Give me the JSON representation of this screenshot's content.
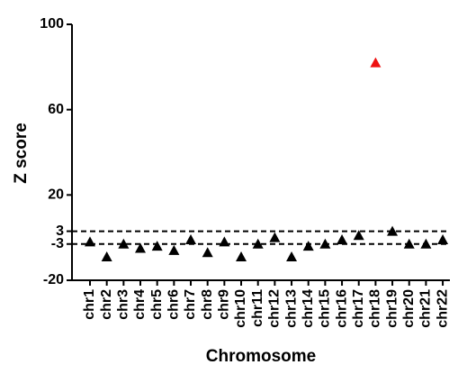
{
  "chart_data": {
    "type": "scatter",
    "xlabel": "Chromosome",
    "ylabel": "Z score",
    "categories": [
      "chr1",
      "chr2",
      "chr3",
      "chr4",
      "chr5",
      "chr6",
      "chr7",
      "chr8",
      "chr9",
      "chr10",
      "chr11",
      "chr12",
      "chr13",
      "chr14",
      "chr15",
      "chr16",
      "chr17",
      "chr18",
      "chr19",
      "chr20",
      "chr21",
      "chr22"
    ],
    "series": [
      {
        "values": [
          -2,
          -9,
          -3,
          -5,
          -4,
          -6,
          -1,
          -7,
          -2,
          -9,
          -3,
          0,
          -9,
          -4,
          -3,
          -1,
          1,
          82,
          3,
          -3,
          -3,
          -1
        ],
        "colors": [
          "#000000",
          "#000000",
          "#000000",
          "#000000",
          "#000000",
          "#000000",
          "#000000",
          "#000000",
          "#000000",
          "#000000",
          "#000000",
          "#000000",
          "#000000",
          "#000000",
          "#000000",
          "#000000",
          "#000000",
          "#ee1111",
          "#000000",
          "#000000",
          "#000000",
          "#000000"
        ]
      }
    ],
    "ylim": [
      -20,
      100
    ],
    "yticks": [
      -20,
      -3,
      3,
      20,
      60,
      100
    ],
    "reference_lines": [
      3,
      -3
    ]
  }
}
